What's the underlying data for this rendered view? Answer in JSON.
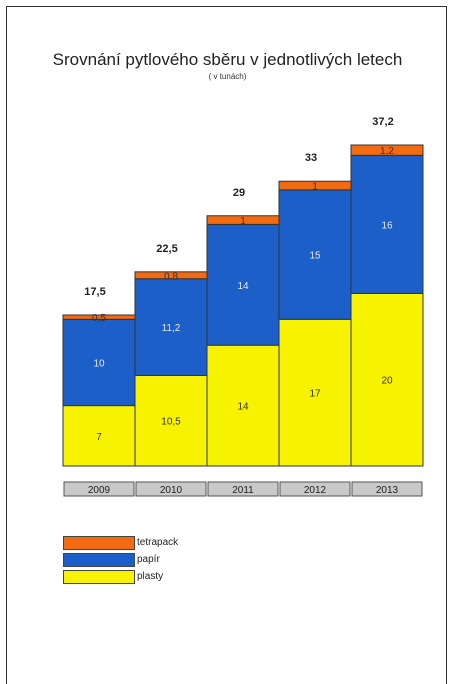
{
  "chart_data": {
    "type": "bar",
    "stacked": true,
    "title": "Srovnání pytlového sběru v jednotlivých letech",
    "subtitle": "( v tunách)",
    "categories": [
      "2009",
      "2010",
      "2011",
      "2012",
      "2013"
    ],
    "series": [
      {
        "name": "plasty",
        "color": "#f7f200",
        "values": [
          7,
          10.5,
          14,
          17,
          20
        ],
        "labels": [
          "7",
          "10,5",
          "14",
          "17",
          "20"
        ]
      },
      {
        "name": "papír",
        "color": "#1c5fc9",
        "values": [
          10,
          11.2,
          14,
          15,
          16
        ],
        "labels": [
          "10",
          "11,2",
          "14",
          "15",
          "16"
        ]
      },
      {
        "name": "tetrapack",
        "color": "#f26a12",
        "values": [
          0.5,
          0.8,
          1,
          1,
          1.2
        ],
        "labels": [
          "0,5",
          "0,8",
          "1",
          "1",
          "1,2"
        ]
      }
    ],
    "totals": [
      "17,5",
      "22,5",
      "29",
      "33",
      "37,2"
    ],
    "ylim": [
      0,
      37.2
    ],
    "legend_position": "bottom-left",
    "grid": false
  }
}
